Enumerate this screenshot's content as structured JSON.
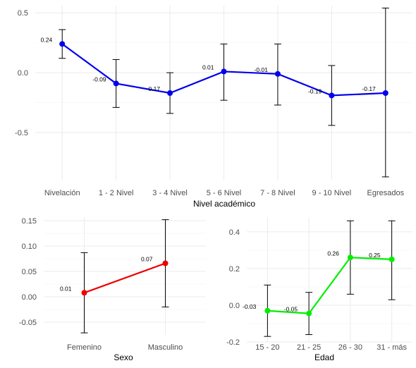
{
  "chart_data": [
    {
      "id": "top",
      "type": "line",
      "categories": [
        "Nivelación",
        "1 - 2  Nivel",
        "3 - 4 Nivel",
        "5 - 6 Nivel",
        "7 - 8 Nivel",
        "9 - 10 Nivel",
        "Egresados"
      ],
      "values": [
        0.24,
        -0.09,
        -0.17,
        0.01,
        -0.01,
        -0.19,
        -0.17
      ],
      "value_labels": [
        "0.24",
        "-0.09",
        "-0.17",
        "0.01",
        "-0.01",
        "-0.19",
        "-0.17"
      ],
      "err_low": [
        0.12,
        -0.29,
        -0.34,
        -0.23,
        -0.27,
        -0.44,
        -0.87
      ],
      "err_high": [
        0.36,
        0.11,
        0.0,
        0.24,
        0.24,
        0.06,
        0.54
      ],
      "xlabel": "Nivel académico",
      "ylabel": "",
      "ylim": [
        -0.9,
        0.56
      ],
      "yticks": [
        -0.5,
        0.0,
        0.5
      ],
      "ytick_labels": [
        "-0.5",
        "0.0",
        "0.5"
      ],
      "color": "#0000ee",
      "grid": true
    },
    {
      "id": "sexo",
      "type": "line",
      "categories": [
        "Femenino",
        "Masculino"
      ],
      "values": [
        0.008,
        0.066
      ],
      "value_labels": [
        "0.01",
        "0.07"
      ],
      "err_low": [
        -0.071,
        -0.02
      ],
      "err_high": [
        0.087,
        0.152
      ],
      "xlabel": "Sexo",
      "ylabel": "",
      "ylim": [
        -0.075,
        0.157
      ],
      "yticks": [
        -0.05,
        0.0,
        0.05,
        0.1,
        0.15
      ],
      "ytick_labels": [
        "-0.05",
        "0.00",
        "0.05",
        "0.10",
        "0.15"
      ],
      "color": "#ee0000",
      "grid": true
    },
    {
      "id": "edad",
      "type": "line",
      "categories": [
        "15 - 20",
        "21 - 25",
        "26 - 30",
        "31 - más"
      ],
      "values": [
        -0.03,
        -0.045,
        0.26,
        0.25
      ],
      "value_labels": [
        "-0.03",
        "-0.05",
        "0.26",
        "0.25"
      ],
      "err_low": [
        -0.17,
        -0.16,
        0.06,
        0.03
      ],
      "err_high": [
        0.11,
        0.07,
        0.46,
        0.46
      ],
      "xlabel": "Edad",
      "ylabel": "",
      "ylim": [
        -0.2,
        0.48
      ],
      "yticks": [
        -0.2,
        0.0,
        0.2,
        0.4
      ],
      "ytick_labels": [
        "-0.2",
        "0.0",
        "0.2",
        "0.4"
      ],
      "color": "#00ee00",
      "grid": true
    }
  ]
}
